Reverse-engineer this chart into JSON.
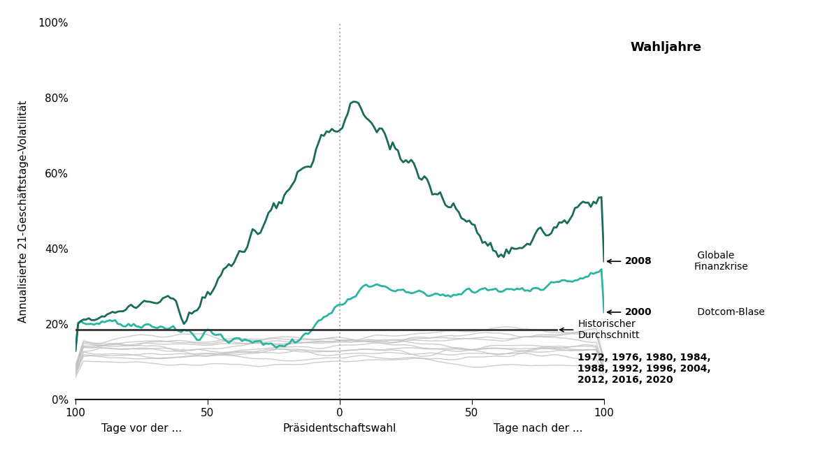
{
  "title": "Wahljahre",
  "ylabel": "Annualisierte 21-Geschäftstage-Volatilität",
  "xlabel_left": "Tage vor der ...",
  "xlabel_center": "Präsidentschaftswahl",
  "xlabel_right": "Tage nach der ...",
  "ylim": [
    0,
    1.0
  ],
  "yticks": [
    0.0,
    0.2,
    0.4,
    0.6,
    0.8,
    1.0
  ],
  "ytick_labels": [
    "0%",
    "20%",
    "40%",
    "60%",
    "80%",
    "100%"
  ],
  "xticks": [
    -100,
    -50,
    0,
    50,
    100
  ],
  "xtick_labels": [
    "100",
    "50",
    "0",
    "50",
    "100"
  ],
  "historical_avg": 0.185,
  "color_2008": "#1a6b5a",
  "color_2000": "#2ab5a0",
  "color_gray": "#c0c0c0",
  "color_avg_line": "#333333",
  "color_vline": "#b0b0b0",
  "annotation_2008_bold": "2008",
  "annotation_2008_rest": " Globale\nFinanzkrise",
  "annotation_2000_bold": "2000",
  "annotation_2000_rest": " Dotcom-Blase",
  "annotation_avg": "Historischer\nDurchschnitt",
  "annotation_years": "1972, 1976, 1980, 1984,\n1988, 1992, 1996, 2004,\n2012, 2016, 2020",
  "linewidth_special": 2.0,
  "linewidth_gray": 1.0,
  "linewidth_avg": 2.0
}
